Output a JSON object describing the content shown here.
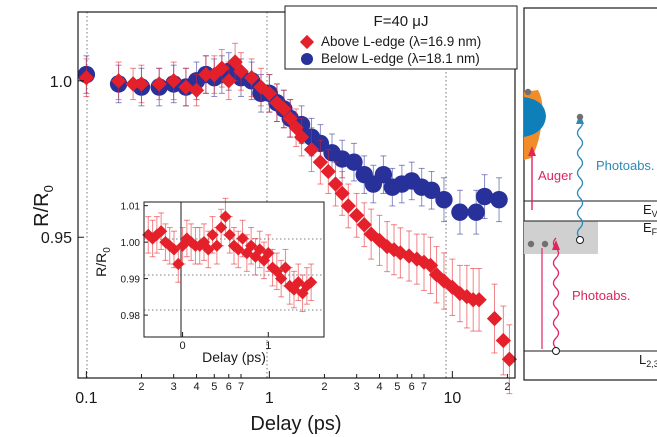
{
  "chart_data": [
    {
      "type": "scatter",
      "xscale": "log",
      "xlim": [
        0.09,
        22
      ],
      "ylim": [
        0.905,
        1.022
      ],
      "xlabel": "Delay (ps)",
      "ylabel_main": "R/R",
      "ylabel_sub": "0",
      "grid": "dotted vertical lines at 0.1, 1 and 10 ps",
      "legend_placement": "top-right",
      "legend_title": "F=40 μJ",
      "xtick_major": [
        {
          "v": 0.1,
          "label": "0.1"
        },
        {
          "v": 1,
          "label": "1"
        },
        {
          "v": 10,
          "label": "10"
        }
      ],
      "xtick_minor": [
        {
          "v": 0.2,
          "label": "2"
        },
        {
          "v": 0.3,
          "label": "3"
        },
        {
          "v": 0.4,
          "label": "4"
        },
        {
          "v": 0.5,
          "label": "5"
        },
        {
          "v": 0.6,
          "label": "6"
        },
        {
          "v": 0.7,
          "label": "7"
        },
        {
          "v": 2,
          "label": "2"
        },
        {
          "v": 3,
          "label": "3"
        },
        {
          "v": 4,
          "label": "4"
        },
        {
          "v": 5,
          "label": "5"
        },
        {
          "v": 6,
          "label": "6"
        },
        {
          "v": 7,
          "label": "7"
        },
        {
          "v": 20,
          "label": "2"
        }
      ],
      "ytick_labels": [
        {
          "v": 1.0,
          "label": "1.0"
        },
        {
          "v": 0.95,
          "label": "0.95"
        }
      ],
      "series": [
        {
          "name": "Above L-edge (λ=16.9 nm)",
          "marker": "diamond",
          "color": "#e4202a",
          "x": [
            0.1,
            0.15,
            0.18,
            0.2,
            0.25,
            0.3,
            0.35,
            0.4,
            0.45,
            0.5,
            0.55,
            0.6,
            0.65,
            0.7,
            0.8,
            0.9,
            1.0,
            1.1,
            1.2,
            1.3,
            1.4,
            1.5,
            1.7,
            1.9,
            2.1,
            2.3,
            2.5,
            2.7,
            3.0,
            3.3,
            3.6,
            4.0,
            4.4,
            4.8,
            5.2,
            5.8,
            6.4,
            7.0,
            7.6,
            8.2,
            9.0,
            10.0,
            11.0,
            12.0,
            13.0,
            14.0,
            17.0,
            19.0,
            20.5
          ],
          "y": [
            1.001,
            1.0,
            0.999,
            0.999,
            0.999,
            1.0,
            0.998,
            0.997,
            1.002,
            1.002,
            1.004,
            1.0,
            1.006,
            1.003,
            1.001,
            0.998,
            0.996,
            0.993,
            0.991,
            0.988,
            0.985,
            0.982,
            0.978,
            0.974,
            0.971,
            0.967,
            0.964,
            0.96,
            0.957,
            0.954,
            0.951,
            0.949,
            0.947,
            0.946,
            0.945,
            0.944,
            0.943,
            0.942,
            0.941,
            0.938,
            0.936,
            0.934,
            0.932,
            0.931,
            0.93,
            0.93,
            0.924,
            0.917,
            0.911
          ],
          "err": [
            0.006,
            0.006,
            0.005,
            0.006,
            0.005,
            0.006,
            0.006,
            0.005,
            0.006,
            0.006,
            0.006,
            0.006,
            0.006,
            0.006,
            0.006,
            0.006,
            0.006,
            0.006,
            0.006,
            0.006,
            0.006,
            0.006,
            0.007,
            0.007,
            0.007,
            0.007,
            0.007,
            0.007,
            0.007,
            0.007,
            0.008,
            0.008,
            0.008,
            0.008,
            0.008,
            0.008,
            0.008,
            0.009,
            0.009,
            0.009,
            0.009,
            0.009,
            0.009,
            0.01,
            0.01,
            0.01,
            0.011,
            0.011,
            0.011
          ]
        },
        {
          "name": "Below L-edge (λ=18.1 nm)",
          "marker": "circle",
          "color": "#28309a",
          "x": [
            0.1,
            0.15,
            0.2,
            0.25,
            0.3,
            0.35,
            0.4,
            0.45,
            0.5,
            0.55,
            0.6,
            0.7,
            0.8,
            0.9,
            1.0,
            1.1,
            1.2,
            1.3,
            1.5,
            1.7,
            1.9,
            2.2,
            2.5,
            2.9,
            3.3,
            3.7,
            4.2,
            4.7,
            5.3,
            6.0,
            6.8,
            7.7,
            9.0,
            11.0,
            13.5,
            15.0,
            18.0
          ],
          "y": [
            1.002,
            0.999,
            0.998,
            0.998,
            0.999,
            0.998,
            1.0,
            1.002,
            1.001,
            1.002,
            1.003,
            1.001,
            1.0,
            0.996,
            0.996,
            0.993,
            0.991,
            0.988,
            0.986,
            0.982,
            0.98,
            0.977,
            0.975,
            0.974,
            0.97,
            0.967,
            0.97,
            0.966,
            0.967,
            0.968,
            0.966,
            0.965,
            0.962,
            0.958,
            0.958,
            0.963,
            0.962
          ],
          "err": [
            0.006,
            0.006,
            0.006,
            0.006,
            0.006,
            0.006,
            0.006,
            0.006,
            0.006,
            0.006,
            0.006,
            0.006,
            0.006,
            0.006,
            0.006,
            0.006,
            0.006,
            0.006,
            0.006,
            0.006,
            0.006,
            0.006,
            0.006,
            0.006,
            0.006,
            0.006,
            0.006,
            0.006,
            0.006,
            0.006,
            0.006,
            0.006,
            0.007,
            0.007,
            0.007,
            0.007,
            0.007
          ]
        }
      ]
    },
    {
      "type": "scatter",
      "xscale": "linear",
      "xlim": [
        -0.45,
        1.65
      ],
      "ylim": [
        0.974,
        1.011
      ],
      "xlabel": "Delay (ps)",
      "ylabel_main": "R/R",
      "ylabel_sub": "0",
      "grid": "dotted horizontal lines at 1.00, 0.99 and 0.98",
      "xtick_labels": [
        {
          "v": 0,
          "label": "0"
        },
        {
          "v": 1,
          "label": "1"
        }
      ],
      "ytick_labels": [
        {
          "v": 1.01,
          "label": "1.01"
        },
        {
          "v": 1.0,
          "label": "1.00"
        },
        {
          "v": 0.99,
          "label": "0.99"
        },
        {
          "v": 0.98,
          "label": "0.98"
        }
      ],
      "series": [
        {
          "marker": "diamond",
          "color": "#e4202a",
          "x": [
            -0.4,
            -0.35,
            -0.3,
            -0.25,
            -0.2,
            -0.15,
            -0.1,
            -0.05,
            0.0,
            0.05,
            0.1,
            0.15,
            0.2,
            0.25,
            0.3,
            0.35,
            0.4,
            0.45,
            0.5,
            0.55,
            0.6,
            0.65,
            0.7,
            0.75,
            0.8,
            0.85,
            0.9,
            0.95,
            1.0,
            1.05,
            1.1,
            1.15,
            1.2,
            1.25,
            1.3,
            1.35,
            1.4,
            1.45,
            1.5
          ],
          "y": [
            1.002,
            1.001,
            1.002,
            1.003,
            1.0,
            0.999,
            0.998,
            0.994,
            0.999,
            1.001,
            1.0,
            0.999,
            0.999,
            1.0,
            0.998,
            1.002,
            0.999,
            1.004,
            1.007,
            1.002,
            0.999,
            0.998,
            1.001,
            0.997,
            0.999,
            0.996,
            0.998,
            0.995,
            0.997,
            0.993,
            0.992,
            0.99,
            0.993,
            0.988,
            0.987,
            0.989,
            0.986,
            0.988,
            0.989
          ],
          "err": [
            0.005,
            0.005,
            0.005,
            0.005,
            0.005,
            0.005,
            0.005,
            0.005,
            0.005,
            0.005,
            0.005,
            0.005,
            0.005,
            0.005,
            0.005,
            0.005,
            0.005,
            0.005,
            0.005,
            0.005,
            0.005,
            0.005,
            0.005,
            0.005,
            0.005,
            0.005,
            0.005,
            0.005,
            0.005,
            0.005,
            0.005,
            0.005,
            0.005,
            0.005,
            0.005,
            0.005,
            0.005,
            0.005,
            0.005
          ]
        }
      ]
    }
  ],
  "diagram": {
    "label_e_top": "E",
    "label_e_top_sub": "V",
    "label_e_fermi": "E",
    "label_e_fermi_sub": "F",
    "label_core": "L",
    "label_core_sub": "2,3",
    "auger": "Auger",
    "photoabs_blue": "Photoabs.",
    "photoabs_red": "Photoabs.",
    "color_auger": "#e0245e",
    "color_blue": "#2b8ab7",
    "color_orange": "#f28c28",
    "color_teal": "#0e7fb8"
  }
}
